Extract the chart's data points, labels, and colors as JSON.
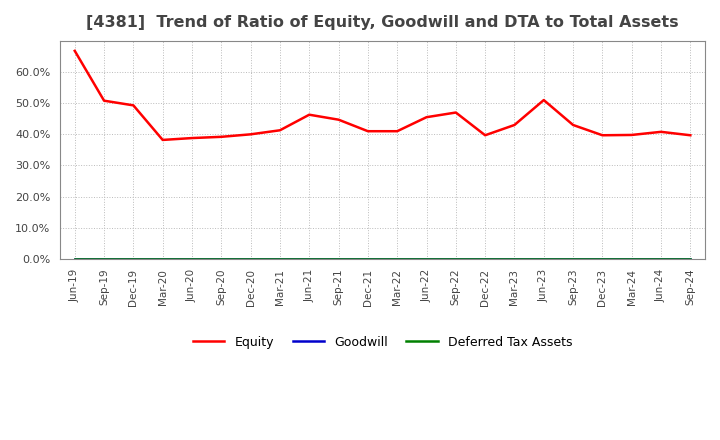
{
  "title": "[4381]  Trend of Ratio of Equity, Goodwill and DTA to Total Assets",
  "x_labels": [
    "Jun-19",
    "Sep-19",
    "Dec-19",
    "Mar-20",
    "Jun-20",
    "Sep-20",
    "Dec-20",
    "Mar-21",
    "Jun-21",
    "Sep-21",
    "Dec-21",
    "Mar-22",
    "Jun-22",
    "Sep-22",
    "Dec-22",
    "Mar-23",
    "Jun-23",
    "Sep-23",
    "Dec-23",
    "Mar-24",
    "Jun-24",
    "Sep-24"
  ],
  "equity": [
    0.668,
    0.508,
    0.493,
    0.382,
    0.388,
    0.392,
    0.4,
    0.413,
    0.463,
    0.447,
    0.41,
    0.41,
    0.455,
    0.47,
    0.397,
    0.43,
    0.51,
    0.43,
    0.397,
    0.398,
    0.408,
    0.397
  ],
  "goodwill": [
    0.0,
    0.0,
    0.0,
    0.0,
    0.0,
    0.0,
    0.0,
    0.0,
    0.0,
    0.0,
    0.0,
    0.0,
    0.0,
    0.0,
    0.0,
    0.0,
    0.0,
    0.0,
    0.0,
    0.0,
    0.0,
    0.0
  ],
  "dta": [
    0.0,
    0.0,
    0.0,
    0.0,
    0.0,
    0.0,
    0.0,
    0.0,
    0.0,
    0.0,
    0.0,
    0.0,
    0.0,
    0.0,
    0.0,
    0.0,
    0.0,
    0.0,
    0.0,
    0.0,
    0.0,
    0.0
  ],
  "equity_color": "#FF0000",
  "goodwill_color": "#0000CC",
  "dta_color": "#008000",
  "ylim": [
    0.0,
    0.7
  ],
  "yticks": [
    0.0,
    0.1,
    0.2,
    0.3,
    0.4,
    0.5,
    0.6
  ],
  "background_color": "#FFFFFF",
  "plot_bg_color": "#FFFFFF",
  "grid_color": "#BBBBBB",
  "title_fontsize": 11.5,
  "title_color": "#444444",
  "legend_labels": [
    "Equity",
    "Goodwill",
    "Deferred Tax Assets"
  ],
  "tick_fontsize": 7.5,
  "ytick_fontsize": 8.0
}
